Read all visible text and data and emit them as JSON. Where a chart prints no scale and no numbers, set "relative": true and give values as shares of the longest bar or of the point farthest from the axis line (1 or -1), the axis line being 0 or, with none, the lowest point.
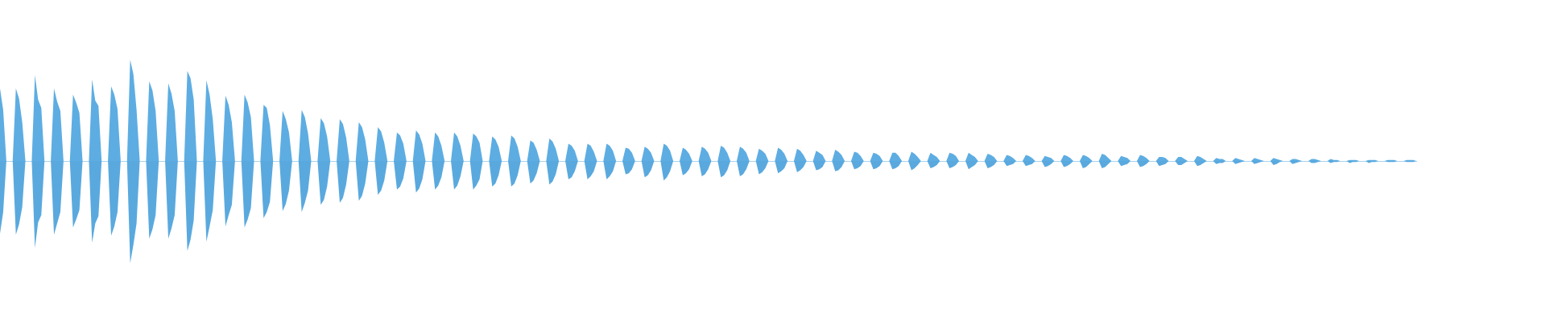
{
  "chart_data": {
    "type": "area",
    "relative": true,
    "tick_labels": false,
    "categories": [
      null,
      null,
      null,
      null,
      null,
      null,
      null,
      null,
      null,
      null,
      null,
      null,
      null,
      null,
      null,
      null,
      null,
      null,
      null,
      null,
      null,
      null,
      null,
      null,
      null,
      null,
      null,
      null,
      null,
      null,
      null,
      null,
      null,
      null,
      null,
      null,
      null,
      null,
      null,
      null,
      null,
      null,
      null,
      null,
      null,
      null,
      null,
      null,
      null,
      null,
      null,
      null,
      null,
      null,
      null,
      null,
      null,
      null,
      null,
      null,
      null,
      null,
      null,
      null,
      null,
      null,
      null,
      null,
      null,
      null,
      null,
      null,
      null,
      null,
      null,
      null,
      null,
      null,
      null,
      null,
      null,
      null,
      null,
      null,
      null,
      null,
      null,
      null,
      null,
      null,
      null,
      null,
      null,
      null,
      null,
      null,
      null,
      null,
      null,
      null,
      null,
      null,
      null,
      null,
      null,
      null,
      null,
      null,
      null,
      null,
      null,
      null,
      null,
      null,
      null,
      null,
      null,
      null,
      null,
      null,
      null,
      null,
      null,
      null,
      null,
      null,
      null,
      null,
      null,
      null,
      null,
      null,
      null,
      null,
      null,
      null,
      null,
      null,
      null,
      null,
      null,
      null,
      null,
      null,
      null,
      null,
      null,
      null,
      null,
      null,
      null,
      null,
      null,
      null,
      null,
      null,
      null,
      null,
      null,
      null,
      null,
      null,
      null,
      null,
      null,
      null,
      null,
      null,
      null,
      null,
      null,
      null,
      null,
      null,
      null,
      null,
      null,
      null,
      null,
      null,
      null,
      null,
      null,
      null,
      null,
      null,
      null,
      null,
      null,
      null,
      null,
      null,
      null,
      null,
      null,
      null,
      null,
      null,
      null,
      null,
      null,
      null,
      null,
      null,
      null,
      null,
      null,
      null,
      null,
      null,
      null,
      null,
      null,
      null,
      null,
      null,
      null,
      null,
      null,
      null,
      null,
      null,
      null,
      null,
      null,
      null,
      null,
      null,
      null,
      null,
      null,
      null,
      null,
      null,
      null,
      null,
      null,
      null,
      null,
      null,
      null,
      null,
      null,
      null,
      null,
      null,
      null,
      null,
      null,
      null,
      null,
      null,
      null,
      null,
      null,
      null,
      null,
      null,
      null,
      null,
      null,
      null,
      null,
      null,
      null,
      null,
      null,
      null,
      null,
      null,
      null,
      null,
      null,
      null,
      null,
      null,
      null,
      null,
      null,
      null,
      null,
      null,
      null,
      null,
      null,
      null,
      null,
      null,
      null,
      null,
      null,
      null,
      null,
      null,
      null,
      null,
      null,
      null,
      null,
      null,
      null,
      null,
      null,
      null,
      null,
      null,
      null,
      null,
      null,
      null,
      null,
      null,
      null,
      null,
      null,
      null,
      null,
      null,
      null,
      null,
      null,
      null,
      null,
      null,
      null,
      null,
      null,
      null,
      null,
      null,
      null,
      null,
      null,
      null,
      null,
      null,
      null,
      null,
      null,
      null,
      null,
      null,
      null,
      null,
      null,
      null,
      null,
      null,
      null,
      null,
      null,
      null,
      null,
      null,
      null,
      null,
      null,
      null,
      null,
      null,
      null,
      null,
      null,
      null,
      null,
      null,
      null,
      null,
      null,
      null,
      null,
      null,
      null,
      null,
      null,
      null,
      null,
      null,
      null,
      null,
      null,
      null,
      null,
      null,
      null,
      null,
      null,
      null,
      null,
      null,
      null,
      null,
      null,
      null,
      null,
      null,
      null,
      null,
      null,
      null,
      null,
      null,
      null,
      null,
      null,
      null,
      null,
      null,
      null,
      null,
      null,
      null,
      null,
      null,
      null,
      null,
      null,
      null,
      null,
      null,
      null,
      null,
      null,
      null,
      null,
      null,
      null,
      null,
      null,
      null,
      null,
      null,
      null,
      null,
      null,
      null,
      null,
      null,
      null,
      null,
      null,
      null,
      null,
      null,
      null,
      null,
      null
    ],
    "series": [
      {
        "color": "#5dade2",
        "values": [
          0.71,
          0.5,
          0,
          0,
          0,
          0.71,
          0.61,
          0.38,
          0,
          0,
          0,
          0.84,
          0.6,
          0.52,
          0,
          0,
          0,
          0.71,
          0.58,
          0.49,
          0,
          0,
          0,
          0.65,
          0.57,
          0.47,
          0,
          0,
          0,
          0.8,
          0.59,
          0.54,
          0,
          0,
          0,
          0.73,
          0.65,
          0.51,
          0,
          0,
          0,
          0.99,
          0.85,
          0.5,
          0,
          0,
          0,
          0.78,
          0.69,
          0.49,
          0,
          0,
          0,
          0.76,
          0.66,
          0.49,
          0,
          0,
          0,
          0.88,
          0.81,
          0.6,
          0,
          0,
          0,
          0.79,
          0.65,
          0.41,
          0,
          0,
          0,
          0.64,
          0.55,
          0.38,
          0,
          0,
          0,
          0.65,
          0.57,
          0.43,
          0,
          0,
          0,
          0.55,
          0.52,
          0.35,
          0,
          0,
          0,
          0.49,
          0.41,
          0.28,
          0,
          0,
          0,
          0.5,
          0.43,
          0.27,
          0,
          0,
          0,
          0.42,
          0.37,
          0.24,
          0,
          0,
          0,
          0.41,
          0.36,
          0.23,
          0,
          0,
          0,
          0.38,
          0.33,
          0.21,
          0,
          0,
          0,
          0.33,
          0.29,
          0.18,
          0,
          0,
          0,
          0.28,
          0.25,
          0.17,
          0,
          0,
          0,
          0.3,
          0.26,
          0.17,
          0,
          0,
          0,
          0.28,
          0.24,
          0.15,
          0,
          0,
          0,
          0.28,
          0.24,
          0.15,
          0,
          0,
          0,
          0.27,
          0.24,
          0.18,
          0,
          0,
          0,
          0.24,
          0.21,
          0.14,
          0,
          0,
          0,
          0.25,
          0.22,
          0.14,
          0,
          0,
          0,
          0.2,
          0.18,
          0.11,
          0,
          0,
          0,
          0.22,
          0.19,
          0.12,
          0,
          0,
          0,
          0.17,
          0.15,
          0.1,
          0,
          0,
          0,
          0.17,
          0.15,
          0.09,
          0,
          0,
          0,
          0.17,
          0.15,
          0.1,
          0,
          0,
          0,
          0.13,
          0.12,
          0.08,
          0,
          0,
          0,
          0.14,
          0.12,
          0.08,
          0,
          0,
          0,
          0.17,
          0.15,
          0.1,
          0,
          0,
          0,
          0.13,
          0.11,
          0.07,
          0,
          0,
          0,
          0.14,
          0.12,
          0.08,
          0,
          0,
          0,
          0.15,
          0.13,
          0.08,
          0,
          0,
          0,
          0.14,
          0.12,
          0.08,
          0,
          0,
          0,
          0.12,
          0.1,
          0.07,
          0,
          0,
          0,
          0.13,
          0.11,
          0.07,
          0,
          0,
          0,
          0.12,
          0.1,
          0.06,
          0,
          0,
          0,
          0.1,
          0.08,
          0.06,
          0,
          0,
          0,
          0.11,
          0.09,
          0.06,
          0,
          0,
          0,
          0.09,
          0.08,
          0.05,
          0,
          0,
          0,
          0.08,
          0.07,
          0.05,
          0,
          0,
          0,
          0.08,
          0.08,
          0.05,
          0,
          0,
          0,
          0.09,
          0.07,
          0.04,
          0,
          0,
          0,
          0.08,
          0.06,
          0.04,
          0,
          0,
          0,
          0.08,
          0.07,
          0.05,
          0,
          0,
          0,
          0.08,
          0.06,
          0.04,
          0,
          0,
          0,
          0.07,
          0.06,
          0.04,
          0,
          0,
          0,
          0.06,
          0.05,
          0.03,
          0,
          0,
          0,
          0.06,
          0.05,
          0.03,
          0,
          0,
          0,
          0.05,
          0.04,
          0.03,
          0,
          0,
          0,
          0.06,
          0.05,
          0.03,
          0,
          0,
          0,
          0.06,
          0.05,
          0.03,
          0,
          0,
          0,
          0.07,
          0.06,
          0.03,
          0,
          0,
          0,
          0.05,
          0.04,
          0.03,
          0,
          0,
          0,
          0.06,
          0.05,
          0.03,
          0,
          0,
          0,
          0.04,
          0.04,
          0.03,
          0,
          0,
          0,
          0.04,
          0.04,
          0.02,
          0,
          0,
          0,
          0.05,
          0.04,
          0.02,
          0,
          0,
          0,
          0.03,
          0.02,
          0.02,
          0,
          0,
          0,
          0.03,
          0.02,
          0.01,
          0,
          0,
          0,
          0.03,
          0.02,
          0.01,
          0,
          0,
          0,
          0.03,
          0.02,
          0.01,
          0,
          0,
          0,
          0.02,
          0.02,
          0.01,
          0,
          0,
          0,
          0.02,
          0.02,
          0.01,
          0,
          0,
          0,
          0.02,
          0.01,
          0.01,
          0,
          0,
          0,
          0.01,
          0.01,
          0.01,
          0,
          0,
          0,
          0.01,
          0.01,
          0.01,
          0,
          0,
          0,
          0.01,
          0.01,
          0.01,
          0,
          0,
          0,
          0.01,
          0.01,
          0.01,
          0
        ]
      },
      {
        "color": "#5aa9de",
        "values": [
          -0.71,
          -0.5,
          0,
          0,
          0,
          -0.72,
          -0.62,
          -0.45,
          0,
          0,
          0,
          -0.85,
          -0.6,
          -0.53,
          0,
          0,
          0,
          -0.72,
          -0.61,
          -0.5,
          0,
          0,
          0,
          -0.65,
          -0.57,
          -0.48,
          0,
          0,
          0,
          -0.8,
          -0.61,
          -0.54,
          0,
          0,
          0,
          -0.73,
          -0.64,
          -0.5,
          0,
          0,
          0,
          -1,
          -0.82,
          -0.61,
          0,
          0,
          0,
          -0.76,
          -0.67,
          -0.53,
          0,
          0,
          0,
          -0.76,
          -0.66,
          -0.53,
          0,
          0,
          0,
          -0.88,
          -0.77,
          -0.58,
          0,
          0,
          0,
          -0.79,
          -0.64,
          -0.48,
          0,
          0,
          0,
          -0.64,
          -0.53,
          -0.43,
          0,
          0,
          0,
          -0.65,
          -0.57,
          -0.46,
          0,
          0,
          0,
          -0.56,
          -0.5,
          -0.4,
          0,
          0,
          0,
          -0.49,
          -0.42,
          -0.29,
          0,
          0,
          0,
          -0.5,
          -0.41,
          -0.29,
          0,
          0,
          0,
          -0.43,
          -0.38,
          -0.25,
          0,
          0,
          0,
          -0.41,
          -0.36,
          -0.23,
          0,
          0,
          0,
          -0.39,
          -0.34,
          -0.22,
          0,
          0,
          0,
          -0.33,
          -0.29,
          -0.19,
          0,
          0,
          0,
          -0.28,
          -0.25,
          -0.17,
          0,
          0,
          0,
          -0.31,
          -0.27,
          -0.18,
          0,
          0,
          0,
          -0.28,
          -0.24,
          -0.16,
          0,
          0,
          0,
          -0.28,
          -0.24,
          -0.15,
          0,
          0,
          0,
          -0.28,
          -0.24,
          -0.18,
          0,
          0,
          0,
          -0.25,
          -0.22,
          -0.14,
          0,
          0,
          0,
          -0.25,
          -0.22,
          -0.14,
          0,
          0,
          0,
          -0.22,
          -0.19,
          -0.12,
          0,
          0,
          0,
          -0.23,
          -0.2,
          -0.13,
          0,
          0,
          0,
          -0.18,
          -0.16,
          -0.1,
          0,
          0,
          0,
          -0.18,
          -0.15,
          -0.1,
          0,
          0,
          0,
          -0.18,
          -0.15,
          -0.1,
          0,
          0,
          0,
          -0.13,
          -0.12,
          -0.08,
          0,
          0,
          0,
          -0.16,
          -0.14,
          -0.09,
          0,
          0,
          0,
          -0.19,
          -0.16,
          -0.1,
          0,
          0,
          0,
          -0.14,
          -0.12,
          -0.08,
          0,
          0,
          0,
          -0.15,
          -0.13,
          -0.08,
          0,
          0,
          0,
          -0.16,
          -0.14,
          -0.09,
          0,
          0,
          0,
          -0.15,
          -0.13,
          -0.08,
          0,
          0,
          0,
          -0.13,
          -0.11,
          -0.07,
          0,
          0,
          0,
          -0.12,
          -0.1,
          -0.07,
          0,
          0,
          0,
          -0.11,
          -0.09,
          -0.06,
          0,
          0,
          0,
          -0.09,
          -0.08,
          -0.06,
          0,
          0,
          0,
          -0.1,
          -0.09,
          -0.06,
          0,
          0,
          0,
          -0.08,
          -0.07,
          -0.05,
          0,
          0,
          0,
          -0.08,
          -0.07,
          -0.05,
          0,
          0,
          0,
          -0.08,
          -0.07,
          -0.05,
          0,
          0,
          0,
          -0.09,
          -0.07,
          -0.04,
          0,
          0,
          0,
          -0.07,
          -0.06,
          -0.04,
          0,
          0,
          0,
          -0.07,
          -0.06,
          -0.04,
          0,
          0,
          0,
          -0.08,
          -0.06,
          -0.04,
          0,
          0,
          0,
          -0.07,
          -0.06,
          -0.04,
          0,
          0,
          0,
          -0.05,
          -0.04,
          -0.03,
          0,
          0,
          0,
          -0.05,
          -0.04,
          -0.03,
          0,
          0,
          0,
          -0.06,
          -0.05,
          -0.03,
          0,
          0,
          0,
          -0.06,
          -0.05,
          -0.03,
          0,
          0,
          0,
          -0.07,
          -0.06,
          -0.03,
          0,
          0,
          0,
          -0.07,
          -0.06,
          -0.03,
          0,
          0,
          0,
          -0.05,
          -0.04,
          -0.03,
          0,
          0,
          0,
          -0.06,
          -0.05,
          -0.03,
          0,
          0,
          0,
          -0.05,
          -0.04,
          -0.03,
          0,
          0,
          0,
          -0.04,
          -0.04,
          -0.02,
          0,
          0,
          0,
          -0.05,
          -0.04,
          -0.02,
          0,
          0,
          0,
          -0.03,
          -0.02,
          -0.02,
          0,
          0,
          0,
          -0.03,
          -0.02,
          -0.01,
          0,
          0,
          0,
          -0.03,
          -0.02,
          -0.01,
          0,
          0,
          0,
          -0.04,
          -0.03,
          -0.01,
          0,
          0,
          0,
          -0.03,
          -0.02,
          -0.01,
          0,
          0,
          0,
          -0.02,
          -0.02,
          -0.01,
          0,
          0,
          0,
          -0.02,
          -0.01,
          -0.01,
          0,
          0,
          0,
          -0.02,
          -0.01,
          -0.01,
          0,
          0,
          0,
          -0.02,
          -0.01,
          -0.01,
          0,
          0,
          0,
          -0.01,
          -0.01,
          -0.01,
          0,
          0,
          0,
          -0.01,
          -0.01,
          -0.01,
          0
        ]
      }
    ]
  }
}
